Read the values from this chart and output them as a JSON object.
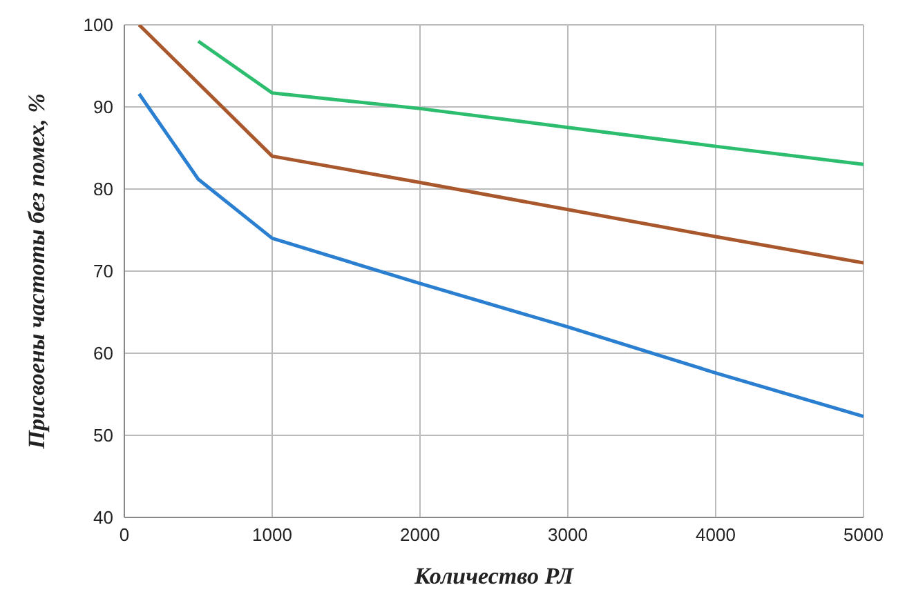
{
  "chart_data": {
    "type": "line",
    "xlabel": "Количество РЛ",
    "ylabel": "Присвоены частоты без помех, %",
    "xlim": [
      0,
      5000
    ],
    "xticks": [
      0,
      1000,
      2000,
      3000,
      4000,
      5000
    ],
    "ylim": [
      40,
      100
    ],
    "yticks": [
      40,
      50,
      60,
      70,
      80,
      90,
      100
    ],
    "grid": true,
    "marker": "none",
    "series": [
      {
        "color": "#2dbd6e",
        "x": [
          500,
          1000,
          2000,
          3000,
          4000,
          5000
        ],
        "values": [
          98,
          91.7,
          89.8,
          87.5,
          85.2,
          83
        ]
      },
      {
        "color": "#a9572c",
        "x": [
          100,
          1000,
          2000,
          3000,
          4000,
          5000
        ],
        "values": [
          100,
          84,
          80.8,
          77.5,
          74.2,
          71
        ]
      },
      {
        "color": "#2b7fd1",
        "x": [
          100,
          500,
          1000,
          2000,
          3000,
          4000,
          5000
        ],
        "values": [
          91.6,
          81.2,
          74,
          68.5,
          63.2,
          57.6,
          52.3
        ]
      }
    ]
  }
}
